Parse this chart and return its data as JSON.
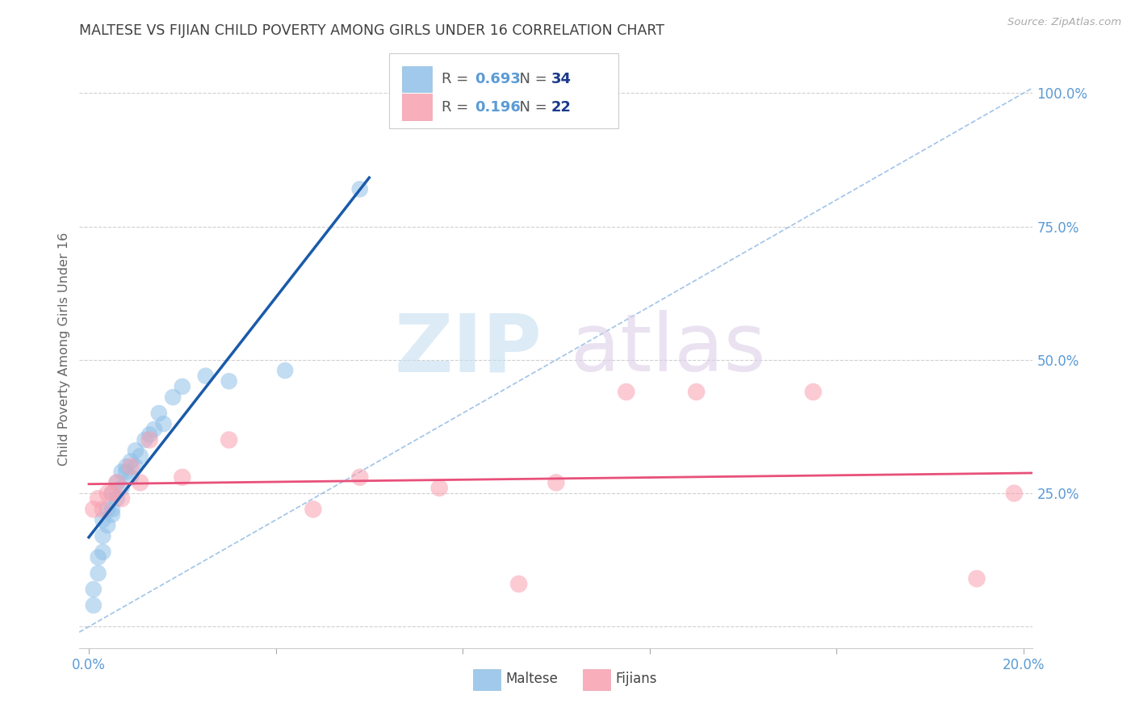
{
  "title": "MALTESE VS FIJIAN CHILD POVERTY AMONG GIRLS UNDER 16 CORRELATION CHART",
  "source": "Source: ZipAtlas.com",
  "ylabel": "Child Poverty Among Girls Under 16",
  "xlim": [
    -0.002,
    0.202
  ],
  "ylim": [
    -0.04,
    1.08
  ],
  "ytick_vals": [
    0.0,
    0.25,
    0.5,
    0.75,
    1.0
  ],
  "ytick_labels_right": [
    "",
    "25.0%",
    "50.0%",
    "75.0%",
    "100.0%"
  ],
  "xtick_vals": [
    0.0,
    0.04,
    0.08,
    0.12,
    0.16,
    0.2
  ],
  "xtick_labels": [
    "0.0%",
    "",
    "",
    "",
    "",
    "20.0%"
  ],
  "maltese_R": "0.693",
  "maltese_N": "34",
  "fijian_R": "0.196",
  "fijian_N": "22",
  "color_maltese_scatter": "#90c0e8",
  "color_fijian_scatter": "#f8a0b0",
  "color_maltese_line": "#1a5aaa",
  "color_fijian_line": "#e8507a",
  "color_diagonal": "#a0c4e8",
  "color_grid": "#d0d0d0",
  "color_bg": "#ffffff",
  "color_title": "#404040",
  "color_tick": "#5b9bd5",
  "color_R_val": "#5b9bd5",
  "color_N_val": "#1a3a8a",
  "color_ylabel": "#666666",
  "color_source": "#aaaaaa",
  "wm_zip_color": "#c5dff0",
  "wm_atlas_color": "#ddd0e8",
  "maltese_x": [
    0.001,
    0.001,
    0.002,
    0.002,
    0.003,
    0.003,
    0.003,
    0.004,
    0.004,
    0.005,
    0.005,
    0.005,
    0.006,
    0.006,
    0.007,
    0.007,
    0.008,
    0.008,
    0.009,
    0.009,
    0.01,
    0.01,
    0.011,
    0.012,
    0.013,
    0.014,
    0.015,
    0.016,
    0.018,
    0.02,
    0.025,
    0.03,
    0.042,
    0.058
  ],
  "maltese_y": [
    0.04,
    0.07,
    0.1,
    0.13,
    0.14,
    0.17,
    0.2,
    0.19,
    0.22,
    0.21,
    0.22,
    0.25,
    0.24,
    0.27,
    0.26,
    0.29,
    0.29,
    0.3,
    0.31,
    0.28,
    0.3,
    0.33,
    0.32,
    0.35,
    0.36,
    0.37,
    0.4,
    0.38,
    0.43,
    0.45,
    0.47,
    0.46,
    0.48,
    0.82
  ],
  "fijian_x": [
    0.001,
    0.002,
    0.003,
    0.004,
    0.005,
    0.006,
    0.007,
    0.009,
    0.011,
    0.013,
    0.02,
    0.03,
    0.048,
    0.058,
    0.075,
    0.092,
    0.1,
    0.115,
    0.13,
    0.155,
    0.19,
    0.198
  ],
  "fijian_y": [
    0.22,
    0.24,
    0.22,
    0.25,
    0.25,
    0.27,
    0.24,
    0.3,
    0.27,
    0.35,
    0.28,
    0.35,
    0.22,
    0.28,
    0.26,
    0.08,
    0.27,
    0.44,
    0.44,
    0.44,
    0.09,
    0.25
  ]
}
